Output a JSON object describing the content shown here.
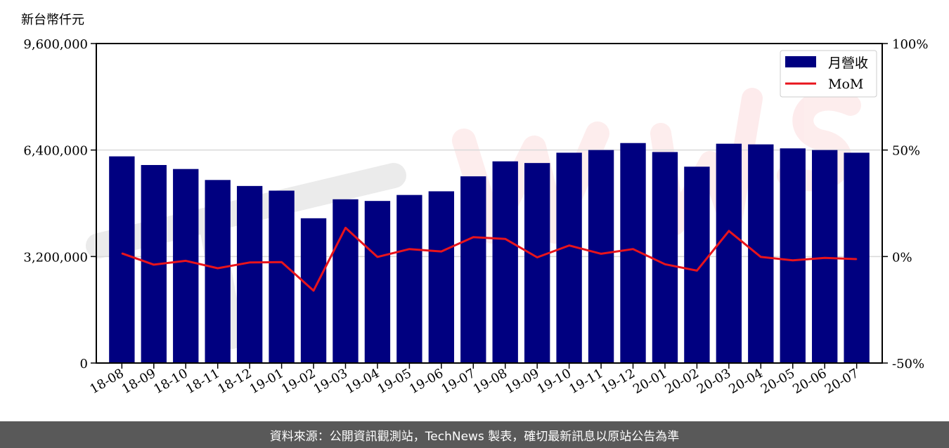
{
  "chart_data": {
    "type": "bar",
    "categories": [
      "18-08",
      "18-09",
      "18-10",
      "18-11",
      "18-12",
      "19-01",
      "19-02",
      "19-03",
      "19-04",
      "19-05",
      "19-06",
      "19-07",
      "19-08",
      "19-09",
      "19-10",
      "19-11",
      "19-12",
      "20-01",
      "20-02",
      "20-03",
      "20-04",
      "20-05",
      "20-06",
      "20-07"
    ],
    "series": [
      {
        "name": "月營收",
        "type": "bar",
        "axis": "left",
        "color": "#000080",
        "values": [
          6210000,
          5950000,
          5830000,
          5500000,
          5320000,
          5180000,
          4350000,
          4920000,
          4870000,
          5050000,
          5160000,
          5610000,
          6060000,
          6010000,
          6320000,
          6400000,
          6610000,
          6340000,
          5900000,
          6590000,
          6570000,
          6450000,
          6400000,
          6320000
        ]
      },
      {
        "name": "MoM",
        "type": "line",
        "axis": "right",
        "color": "#e8141c",
        "values": [
          1.5,
          -3.8,
          -2.0,
          -5.5,
          -2.8,
          -2.6,
          -16.0,
          13.5,
          -0.2,
          3.5,
          2.4,
          9.1,
          8.3,
          -0.4,
          5.2,
          1.3,
          3.5,
          -3.6,
          -6.6,
          12.0,
          -0.2,
          -1.8,
          -0.6,
          -1.2
        ]
      }
    ],
    "ylabel": "新台幣仟元",
    "ylim": [
      0,
      9600000
    ],
    "yticks": [
      "0",
      "3,200,000",
      "6,400,000",
      "9,600,000"
    ],
    "ylim_right": [
      -50,
      100
    ],
    "yticks_right": [
      "-50%",
      "0%",
      "50%",
      "100%"
    ],
    "grid": true,
    "legend": "top-right"
  },
  "watermark": "TechNews",
  "footer": "資料來源：公開資訊觀測站，TechNews 製表，確切最新訊息以原站公告為準"
}
